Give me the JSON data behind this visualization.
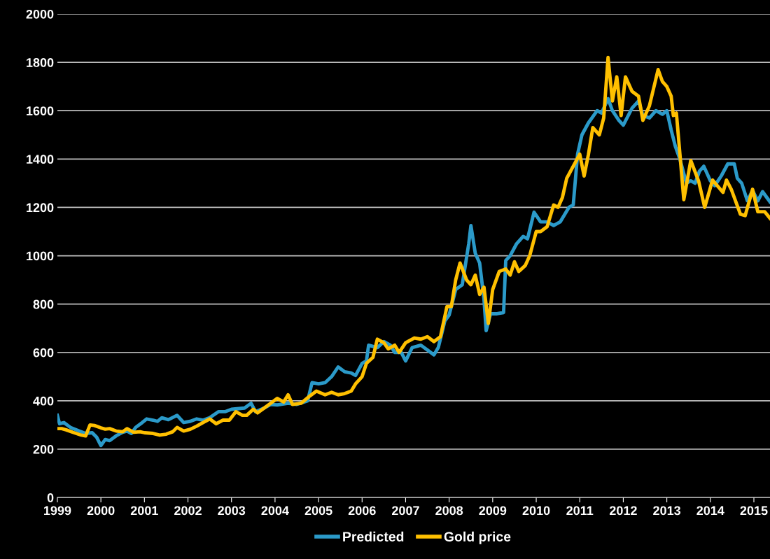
{
  "chart_data": {
    "type": "line",
    "xlim": [
      1999,
      2015.37
    ],
    "xticks": [
      1999,
      2000,
      2001,
      2002,
      2003,
      2004,
      2005,
      2006,
      2007,
      2008,
      2009,
      2010,
      2011,
      2012,
      2013,
      2014,
      2015
    ],
    "ylim": [
      0,
      2000
    ],
    "yticks": [
      0,
      200,
      400,
      600,
      800,
      1000,
      1200,
      1400,
      1600,
      1800,
      2000
    ],
    "grid": "y",
    "legend": "bottom",
    "marker": "none",
    "line_style": "solid",
    "series": [
      {
        "name": "Predicted",
        "color": "#2b9ac9",
        "x": [
          1999.0,
          1999.05,
          1999.15,
          1999.3,
          1999.5,
          1999.65,
          1999.8,
          1999.9,
          2000.0,
          2000.1,
          2000.2,
          2000.35,
          2000.5,
          2000.6,
          2000.7,
          2000.8,
          2000.95,
          2001.05,
          2001.2,
          2001.3,
          2001.4,
          2001.55,
          2001.75,
          2001.9,
          2002.05,
          2002.2,
          2002.35,
          2002.5,
          2002.7,
          2002.85,
          2003.0,
          2003.3,
          2003.45,
          2003.55,
          2003.75,
          2003.9,
          2004.05,
          2004.3,
          2004.5,
          2004.75,
          2004.85,
          2005.0,
          2005.15,
          2005.3,
          2005.45,
          2005.6,
          2005.75,
          2005.85,
          2006.0,
          2006.1,
          2006.15,
          2006.35,
          2006.5,
          2006.65,
          2006.75,
          2006.9,
          2007.0,
          2007.15,
          2007.35,
          2007.5,
          2007.65,
          2007.75,
          2007.9,
          2008.0,
          2008.15,
          2008.3,
          2008.45,
          2008.5,
          2008.6,
          2008.7,
          2008.8,
          2008.85,
          2008.95,
          2009.1,
          2009.25,
          2009.3,
          2009.4,
          2009.55,
          2009.7,
          2009.8,
          2009.95,
          2010.1,
          2010.25,
          2010.4,
          2010.55,
          2010.75,
          2010.85,
          2010.95,
          2011.05,
          2011.2,
          2011.4,
          2011.5,
          2011.65,
          2011.75,
          2011.9,
          2012.0,
          2012.2,
          2012.35,
          2012.45,
          2012.6,
          2012.75,
          2012.9,
          2013.0,
          2013.1,
          2013.2,
          2013.3,
          2013.45,
          2013.55,
          2013.65,
          2013.75,
          2013.85,
          2014.0,
          2014.1,
          2014.25,
          2014.4,
          2014.55,
          2014.62,
          2014.72,
          2014.85,
          2014.97,
          2015.09,
          2015.2,
          2015.37
        ],
        "values": [
          340,
          305,
          310,
          290,
          275,
          265,
          268,
          250,
          215,
          240,
          235,
          255,
          270,
          275,
          265,
          290,
          310,
          325,
          320,
          315,
          330,
          322,
          340,
          310,
          315,
          325,
          320,
          330,
          355,
          355,
          365,
          370,
          390,
          355,
          370,
          385,
          383,
          390,
          385,
          400,
          475,
          470,
          475,
          500,
          540,
          520,
          515,
          505,
          555,
          565,
          630,
          620,
          645,
          630,
          600,
          600,
          565,
          620,
          630,
          610,
          590,
          620,
          730,
          755,
          860,
          880,
          1050,
          1125,
          1010,
          970,
          820,
          690,
          760,
          760,
          765,
          980,
          1000,
          1050,
          1080,
          1070,
          1180,
          1140,
          1140,
          1125,
          1140,
          1200,
          1210,
          1420,
          1500,
          1550,
          1600,
          1590,
          1650,
          1600,
          1560,
          1540,
          1610,
          1640,
          1580,
          1570,
          1600,
          1585,
          1600,
          1520,
          1450,
          1400,
          1300,
          1310,
          1300,
          1350,
          1370,
          1310,
          1290,
          1330,
          1380,
          1380,
          1320,
          1300,
          1227,
          1270,
          1227,
          1265,
          1223
        ]
      },
      {
        "name": "Gold price",
        "color": "#ffc000",
        "x": [
          1999.0,
          1999.1,
          1999.2,
          1999.35,
          1999.55,
          1999.65,
          1999.75,
          1999.85,
          2000.0,
          2000.1,
          2000.2,
          2000.35,
          2000.5,
          2000.6,
          2000.75,
          2000.9,
          2001.0,
          2001.2,
          2001.35,
          2001.5,
          2001.65,
          2001.75,
          2001.9,
          2002.05,
          2002.2,
          2002.35,
          2002.5,
          2002.65,
          2002.8,
          2002.95,
          2003.1,
          2003.25,
          2003.35,
          2003.5,
          2003.6,
          2003.75,
          2003.9,
          2004.05,
          2004.2,
          2004.3,
          2004.4,
          2004.6,
          2004.8,
          2004.95,
          2005.15,
          2005.3,
          2005.45,
          2005.6,
          2005.75,
          2005.85,
          2006.0,
          2006.1,
          2006.25,
          2006.35,
          2006.5,
          2006.6,
          2006.75,
          2006.85,
          2007.0,
          2007.2,
          2007.35,
          2007.5,
          2007.65,
          2007.8,
          2007.95,
          2008.05,
          2008.15,
          2008.25,
          2008.4,
          2008.5,
          2008.6,
          2008.7,
          2008.8,
          2008.9,
          2009.0,
          2009.15,
          2009.3,
          2009.4,
          2009.5,
          2009.6,
          2009.75,
          2009.85,
          2010.0,
          2010.1,
          2010.25,
          2010.4,
          2010.5,
          2010.6,
          2010.7,
          2010.85,
          2011.0,
          2011.1,
          2011.2,
          2011.3,
          2011.45,
          2011.55,
          2011.65,
          2011.75,
          2011.85,
          2011.95,
          2012.05,
          2012.2,
          2012.35,
          2012.45,
          2012.6,
          2012.8,
          2012.9,
          2013.0,
          2013.1,
          2013.15,
          2013.22,
          2013.39,
          2013.55,
          2013.73,
          2013.87,
          2014.05,
          2014.29,
          2014.37,
          2014.48,
          2014.69,
          2014.8,
          2014.97,
          2015.09,
          2015.25,
          2015.37
        ],
        "values": [
          285,
          285,
          280,
          270,
          258,
          255,
          300,
          298,
          288,
          283,
          285,
          275,
          272,
          285,
          270,
          272,
          268,
          265,
          258,
          262,
          272,
          290,
          275,
          282,
          295,
          310,
          325,
          305,
          320,
          320,
          355,
          340,
          340,
          365,
          350,
          370,
          390,
          410,
          395,
          425,
          385,
          390,
          420,
          440,
          425,
          435,
          425,
          430,
          440,
          470,
          500,
          555,
          580,
          655,
          640,
          615,
          630,
          600,
          640,
          660,
          655,
          665,
          645,
          665,
          790,
          790,
          900,
          970,
          900,
          880,
          920,
          840,
          870,
          720,
          860,
          935,
          945,
          920,
          975,
          935,
          960,
          1000,
          1100,
          1100,
          1120,
          1210,
          1200,
          1240,
          1320,
          1370,
          1420,
          1330,
          1420,
          1530,
          1500,
          1570,
          1820,
          1640,
          1740,
          1580,
          1740,
          1680,
          1660,
          1560,
          1620,
          1770,
          1720,
          1700,
          1660,
          1580,
          1590,
          1232,
          1394,
          1309,
          1200,
          1313,
          1262,
          1313,
          1275,
          1172,
          1166,
          1275,
          1182,
          1182,
          1155
        ]
      }
    ]
  }
}
